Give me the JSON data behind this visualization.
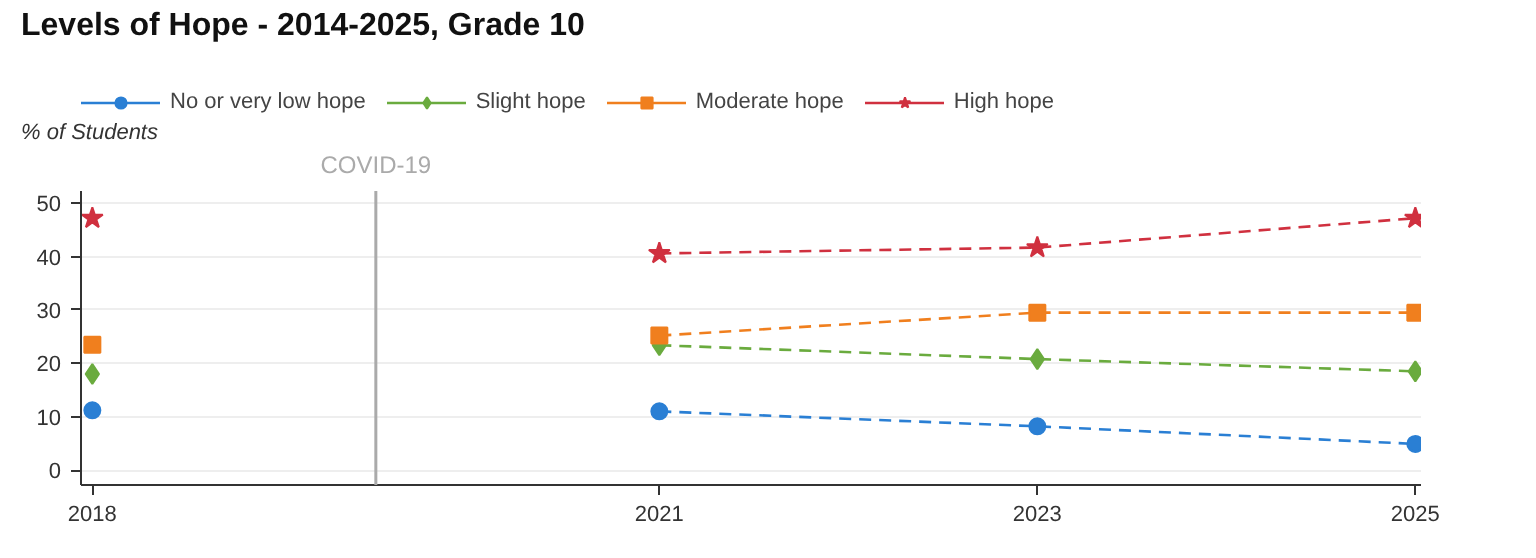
{
  "chart_data": {
    "type": "line",
    "title": "Levels of Hope - 2014-2025,  Grade 10",
    "ylabel": "% of Students",
    "x": [
      2018,
      2020,
      2021,
      2023,
      2025
    ],
    "series": [
      {
        "name": "No or very low hope",
        "color": "#2a7fd4",
        "marker": "circle",
        "values": [
          11.2,
          null,
          11.0,
          8.2,
          4.9
        ]
      },
      {
        "name": "Slight hope",
        "color": "#6aab3e",
        "marker": "diamond",
        "values": [
          18.0,
          null,
          23.4,
          20.8,
          18.5
        ]
      },
      {
        "name": "Moderate hope",
        "color": "#f07f1e",
        "marker": "square",
        "values": [
          23.5,
          null,
          25.2,
          29.5,
          29.5
        ]
      },
      {
        "name": "High hope",
        "color": "#d0303f",
        "marker": "star",
        "values": [
          47.2,
          null,
          40.6,
          41.7,
          47.2
        ]
      }
    ],
    "line_style": "dashed",
    "legend": "top",
    "grid": "y",
    "xlim": [
      2017.94,
      2025.03
    ],
    "xticks": [
      2018,
      2021,
      2023,
      2025
    ],
    "ylim": [
      -2.8,
      52.3
    ],
    "yticks": [
      0,
      10,
      20,
      30,
      40,
      50
    ],
    "ref_lines": [
      {
        "axis": "x",
        "value": 2019.5,
        "label": "COVID-19",
        "color": "#aaaaaa"
      }
    ]
  }
}
